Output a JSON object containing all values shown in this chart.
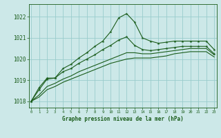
{
  "background_color": "#cce8e8",
  "plot_bg_color": "#cce8e8",
  "grid_color": "#99cccc",
  "line_color": "#1a5c1a",
  "xlabel": "Graphe pression niveau de la mer (hPa)",
  "ylim": [
    1017.7,
    1022.6
  ],
  "yticks": [
    1018,
    1019,
    1020,
    1021,
    1022
  ],
  "xlim": [
    -0.3,
    23.3
  ],
  "xticks": [
    0,
    1,
    2,
    3,
    4,
    5,
    6,
    7,
    8,
    9,
    10,
    11,
    12,
    13,
    14,
    15,
    16,
    17,
    18,
    19,
    20,
    21,
    22,
    23
  ],
  "series1": [
    1018.0,
    1018.65,
    1019.1,
    1019.1,
    1019.55,
    1019.75,
    1020.05,
    1020.3,
    1020.6,
    1020.85,
    1021.3,
    1021.95,
    1022.15,
    1021.75,
    1021.0,
    1020.85,
    1020.75,
    1020.8,
    1020.85,
    1020.85,
    1020.85,
    1020.85,
    1020.85,
    1020.45
  ],
  "series2": [
    1018.0,
    1018.55,
    1019.05,
    1019.1,
    1019.4,
    1019.55,
    1019.8,
    1020.0,
    1020.2,
    1020.45,
    1020.65,
    1020.9,
    1021.05,
    1020.65,
    1020.45,
    1020.4,
    1020.45,
    1020.5,
    1020.55,
    1020.6,
    1020.6,
    1020.6,
    1020.6,
    1020.25
  ],
  "series3": [
    1018.0,
    1018.3,
    1018.7,
    1018.85,
    1019.05,
    1019.2,
    1019.4,
    1019.55,
    1019.7,
    1019.85,
    1020.0,
    1020.15,
    1020.3,
    1020.3,
    1020.25,
    1020.25,
    1020.3,
    1020.35,
    1020.4,
    1020.45,
    1020.5,
    1020.5,
    1020.5,
    1020.2
  ],
  "series4": [
    1018.0,
    1018.2,
    1018.55,
    1018.7,
    1018.9,
    1019.05,
    1019.2,
    1019.35,
    1019.5,
    1019.65,
    1019.8,
    1019.9,
    1020.0,
    1020.05,
    1020.05,
    1020.05,
    1020.1,
    1020.15,
    1020.25,
    1020.3,
    1020.35,
    1020.35,
    1020.35,
    1020.1
  ]
}
